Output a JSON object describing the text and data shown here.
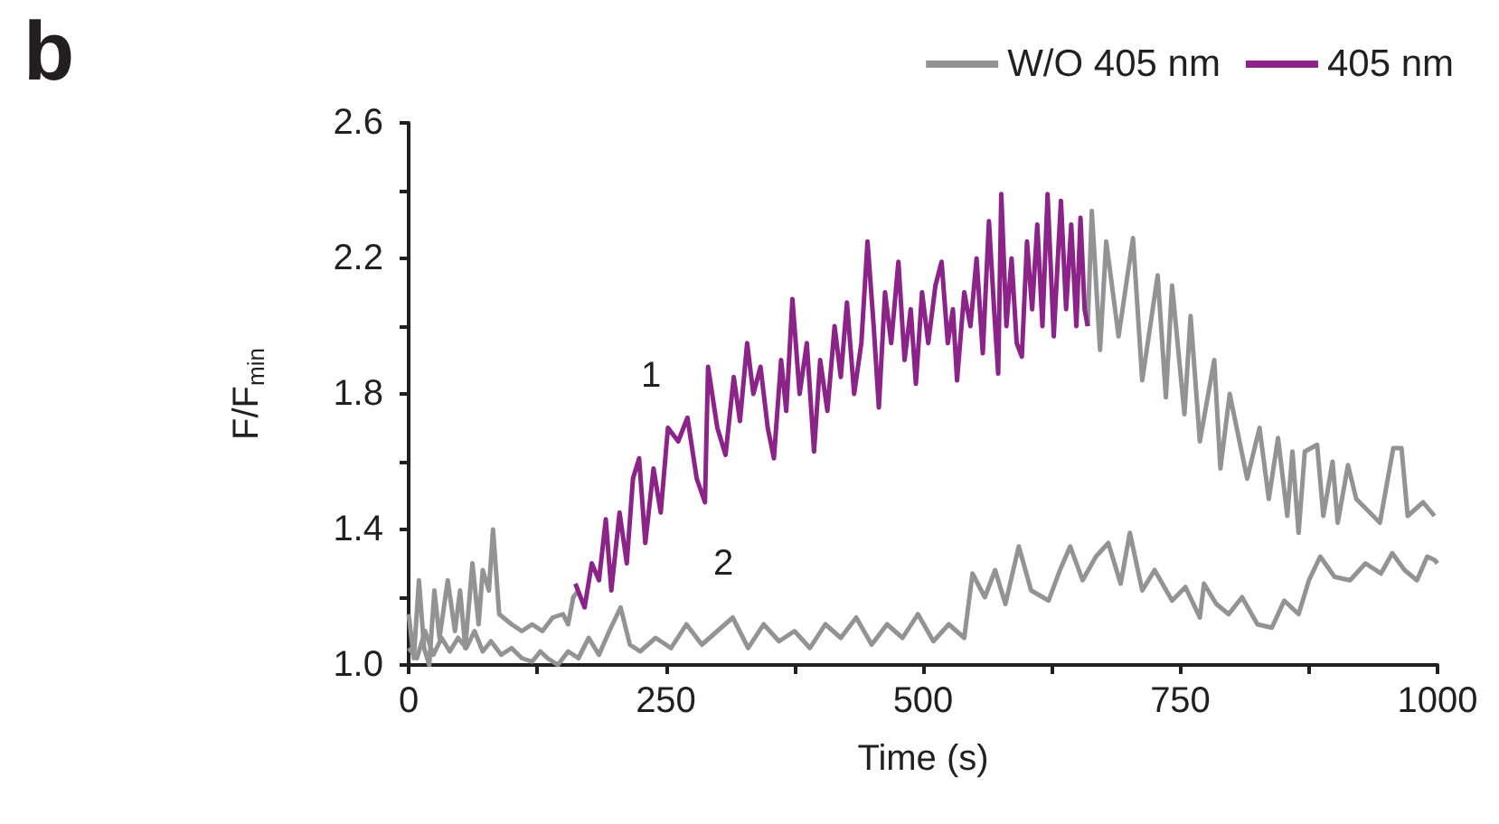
{
  "chart_data": {
    "type": "line",
    "title": "b",
    "xlabel": "Time (s)",
    "ylabel": "F/F$_{min}$",
    "xlim": [
      0,
      1000
    ],
    "xticks": [
      0,
      {
        "value": 125,
        "label": null
      },
      250,
      {
        "value": 375,
        "label": null
      },
      500,
      {
        "value": 625,
        "label": null
      },
      750,
      {
        "value": 875,
        "label": null
      },
      1000
    ],
    "ylim": [
      1.0,
      2.6
    ],
    "yticks": [
      {
        "value": 1.0,
        "label": "1.0"
      },
      {
        "value": 1.2,
        "label": null
      },
      {
        "value": 1.4,
        "label": "1.4"
      },
      {
        "value": 1.6,
        "label": null
      },
      {
        "value": 1.8,
        "label": "1.8"
      },
      {
        "value": 2.0,
        "label": null
      },
      {
        "value": 2.2,
        "label": "2.2"
      },
      {
        "value": 2.4,
        "label": null
      },
      {
        "value": 2.6,
        "label": "2.6"
      }
    ],
    "grid": false,
    "legend": "top right",
    "marker": "none",
    "line_style": "solid",
    "annotations": [
      "1",
      "2"
    ],
    "series": [
      {
        "name": "W/O 405 nm",
        "color": "#939393",
        "x": [
          0,
          8,
          16,
          24,
          32,
          40,
          48,
          56,
          64,
          72,
          80,
          90,
          100,
          110,
          120,
          128,
          135,
          145,
          155,
          165,
          175,
          185,
          195,
          206,
          215,
          225,
          240,
          255,
          270,
          285,
          300,
          315,
          330,
          345,
          360,
          375,
          390,
          405,
          420,
          435,
          450,
          465,
          480,
          495,
          510,
          525,
          540,
          548,
          560,
          570,
          580,
          593,
          605,
          622,
          633,
          643,
          655,
          668,
          680,
          692,
          701,
          713,
          725,
          742,
          755,
          769,
          773,
          785,
          797,
          810,
          825,
          839,
          851,
          865,
          875,
          886,
          900,
          915,
          930,
          945,
          956,
          968,
          980,
          990,
          997,
          1000
        ],
        "values": [
          1.05,
          1.02,
          1.1,
          1.03,
          1.08,
          1.04,
          1.08,
          1.05,
          1.1,
          1.04,
          1.07,
          1.03,
          1.05,
          1.02,
          1.01,
          1.04,
          1.02,
          1.0,
          1.04,
          1.02,
          1.08,
          1.03,
          1.1,
          1.17,
          1.06,
          1.04,
          1.08,
          1.05,
          1.12,
          1.06,
          1.1,
          1.14,
          1.05,
          1.12,
          1.07,
          1.1,
          1.05,
          1.12,
          1.08,
          1.14,
          1.06,
          1.12,
          1.08,
          1.15,
          1.07,
          1.12,
          1.08,
          1.27,
          1.2,
          1.28,
          1.18,
          1.35,
          1.22,
          1.19,
          1.28,
          1.35,
          1.25,
          1.32,
          1.36,
          1.24,
          1.39,
          1.22,
          1.28,
          1.19,
          1.23,
          1.14,
          1.24,
          1.18,
          1.15,
          1.2,
          1.12,
          1.11,
          1.19,
          1.15,
          1.25,
          1.32,
          1.26,
          1.25,
          1.3,
          1.27,
          1.33,
          1.28,
          1.25,
          1.32,
          1.31,
          1.3
        ]
      },
      {
        "name": "405 nm",
        "color": "#8b2388",
        "x": [
          162,
          171,
          178,
          185,
          191.6,
          197,
          205,
          212,
          218,
          224,
          230,
          238,
          245,
          252,
          262,
          271,
          280,
          288,
          291,
          300,
          308,
          316,
          322,
          329,
          335,
          342,
          349,
          355,
          362,
          367,
          373,
          380,
          387,
          394,
          400,
          407,
          414,
          420,
          426,
          433,
          440,
          446,
          452,
          457,
          463,
          469,
          476,
          482,
          488,
          493,
          499,
          505,
          512,
          518,
          524,
          529,
          533,
          540,
          546,
          552,
          558,
          564,
          569,
          573,
          576,
          581,
          586,
          591,
          596,
          601,
          606,
          611,
          616,
          621,
          627,
          631,
          634,
          639,
          644,
          649,
          653,
          657,
          660
        ],
        "values": [
          1.24,
          1.17,
          1.3,
          1.25,
          1.43,
          1.22,
          1.45,
          1.3,
          1.55,
          1.61,
          1.36,
          1.58,
          1.45,
          1.7,
          1.66,
          1.73,
          1.55,
          1.48,
          1.88,
          1.7,
          1.62,
          1.85,
          1.72,
          1.95,
          1.8,
          1.88,
          1.7,
          1.61,
          1.9,
          1.75,
          2.08,
          1.8,
          1.95,
          1.63,
          1.9,
          1.75,
          2.0,
          1.85,
          2.07,
          1.8,
          1.95,
          2.25,
          2.0,
          1.76,
          2.1,
          1.95,
          2.19,
          1.9,
          2.05,
          1.83,
          2.1,
          1.95,
          2.12,
          2.19,
          1.95,
          2.05,
          1.84,
          2.1,
          2.0,
          2.2,
          1.92,
          2.31,
          2.05,
          1.86,
          2.39,
          2.0,
          2.2,
          1.95,
          1.91,
          2.25,
          2.05,
          2.3,
          2.0,
          2.39,
          1.97,
          2.2,
          2.37,
          2.05,
          2.3,
          2.0,
          2.32,
          2.05,
          2.0
        ]
      },
      {
        "color": "#939393",
        "x": [
          0,
          5,
          10,
          15,
          20,
          25,
          30,
          38,
          45,
          50,
          55,
          62,
          68,
          72,
          78,
          82,
          88,
          100,
          110,
          120,
          130,
          140,
          150,
          155,
          160,
          165
        ],
        "values": [
          1.15,
          1.02,
          1.25,
          1.05,
          1.0,
          1.22,
          1.08,
          1.25,
          1.1,
          1.22,
          1.05,
          1.3,
          1.12,
          1.28,
          1.22,
          1.4,
          1.15,
          1.12,
          1.1,
          1.12,
          1.1,
          1.14,
          1.15,
          1.12,
          1.2,
          1.22
        ]
      },
      {
        "color": "#939393",
        "x": [
          660,
          664,
          672,
          678,
          690,
          704,
          713,
          728,
          736,
          742,
          754,
          760,
          769,
          783,
          789,
          798,
          815,
          827,
          836,
          845,
          854,
          859,
          865,
          871,
          883,
          889,
          898,
          903,
          913,
          921,
          944,
          957,
          965,
          971,
          986,
          997
        ],
        "values": [
          2.0,
          2.34,
          1.93,
          2.25,
          1.97,
          2.26,
          1.84,
          2.15,
          1.79,
          2.12,
          1.74,
          2.03,
          1.66,
          1.9,
          1.58,
          1.8,
          1.55,
          1.7,
          1.49,
          1.67,
          1.44,
          1.63,
          1.39,
          1.63,
          1.65,
          1.44,
          1.6,
          1.42,
          1.59,
          1.49,
          1.42,
          1.64,
          1.64,
          1.44,
          1.48,
          1.44
        ]
      }
    ]
  }
}
